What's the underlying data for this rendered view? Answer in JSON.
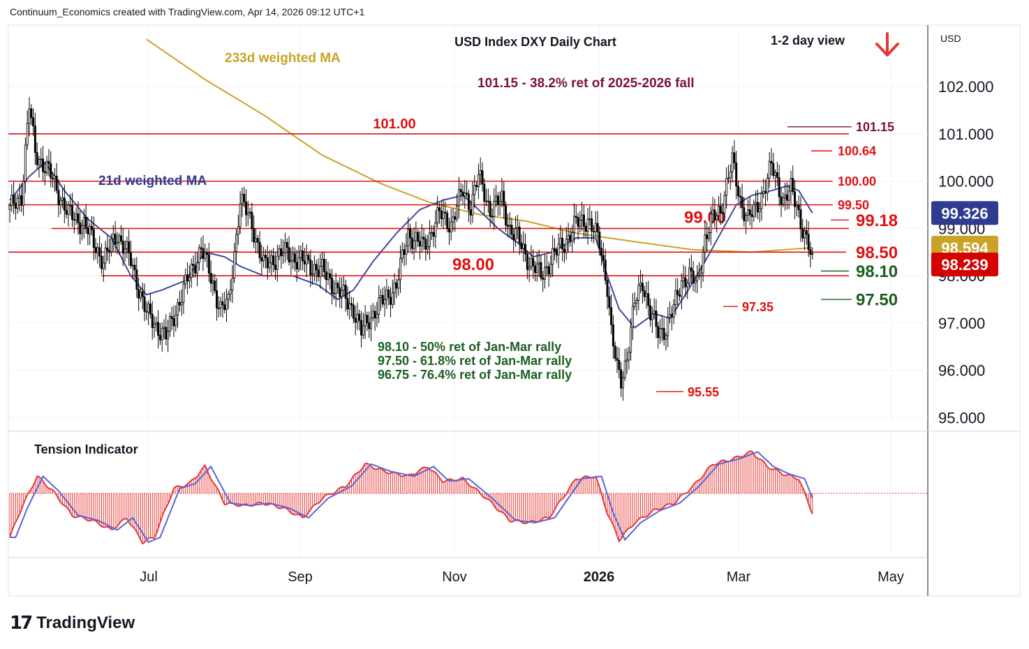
{
  "header": {
    "attribution": "Continuum_Economics created with TradingView.com, Apr 14, 2026 09:12 UTC+1"
  },
  "footer": {
    "logo_mark": "17",
    "logo_text": "TradingView"
  },
  "colors": {
    "level_red": "#e01010",
    "ma233": "#c9a227",
    "ma21": "#3a4a9c",
    "candle": "#000000",
    "fib_green": "#1b5e20",
    "fib_purple": "#7b1040",
    "arrow_red": "#e53935",
    "badge_blue": "#2e3b8f",
    "badge_gold": "#c9a227",
    "badge_red": "#d50000",
    "tension_red": "#e53935",
    "tension_blue": "#5a63d8"
  },
  "chart_data": {
    "type": "candlestick",
    "title": "USD Index DXY Daily Chart",
    "view_label": "1-2 day view",
    "view_direction_icon": "arrow-down-icon",
    "currency_label": "USD",
    "ylim": [
      94.8,
      103.3
    ],
    "y_ticks": [
      "102.000",
      "101.000",
      "100.000",
      "99.000",
      "98.000",
      "97.000",
      "96.000",
      "95.000"
    ],
    "x_labels": [
      "Jul",
      "Sep",
      "Nov",
      "2026",
      "Mar",
      "May"
    ],
    "price_badges": [
      {
        "value": "99.326",
        "role": "21d weighted MA",
        "color": "#2e3b8f"
      },
      {
        "value": "98.594",
        "role": "233d weighted MA",
        "color": "#c9a227"
      },
      {
        "value": "98.239",
        "role": "last price",
        "color": "#d50000"
      }
    ],
    "indicator_labels": {
      "ma233": "233d weighted MA",
      "ma21": "21d weighted MA",
      "fib_top": "101.15 - 38.2% ret of 2025-2026 fall"
    },
    "horizontal_levels": [
      {
        "value": 101.0,
        "label": "101.00"
      },
      {
        "value": 100.0,
        "label": "100.00"
      },
      {
        "value": 99.5,
        "label": "99.50"
      },
      {
        "value": 99.0,
        "label": "99.00"
      },
      {
        "value": 98.5,
        "label": "98.50"
      },
      {
        "value": 98.0,
        "label": "98.00"
      }
    ],
    "right_labels": [
      {
        "value": 101.15,
        "label": "101.15",
        "color": "#7b1040"
      },
      {
        "value": 100.64,
        "label": "100.64",
        "color": "#e01010"
      },
      {
        "value": 100.0,
        "label": "100.00",
        "color": "#e01010"
      },
      {
        "value": 99.5,
        "label": "99.50",
        "color": "#e01010"
      },
      {
        "value": 99.18,
        "label": "99.18",
        "color": "#e01010"
      },
      {
        "value": 98.5,
        "label": "98.50",
        "color": "#e01010"
      },
      {
        "value": 98.1,
        "label": "98.10",
        "color": "#1b5e20"
      },
      {
        "value": 97.5,
        "label": "97.50",
        "color": "#1b5e20"
      }
    ],
    "point_labels": [
      {
        "value": 97.35,
        "label": "97.35"
      },
      {
        "value": 95.55,
        "label": "95.55"
      }
    ],
    "fib_notes": [
      "98.10 - 50% ret of Jan-Mar rally",
      "97.50 - 61.8% ret of Jan-Mar rally",
      "96.75 - 76.4% ret of Jan-Mar rally"
    ],
    "tension_indicator": {
      "title": "Tension Indicator"
    },
    "price_path_keypoints": [
      [
        0,
        99.4
      ],
      [
        6,
        99.7
      ],
      [
        10,
        101.6
      ],
      [
        13,
        100.6
      ],
      [
        20,
        100.2
      ],
      [
        30,
        99.3
      ],
      [
        38,
        99.1
      ],
      [
        48,
        98.3
      ],
      [
        55,
        98.9
      ],
      [
        62,
        98.3
      ],
      [
        70,
        97.2
      ],
      [
        80,
        96.7
      ],
      [
        88,
        97.6
      ],
      [
        98,
        98.6
      ],
      [
        108,
        97.3
      ],
      [
        112,
        97.4
      ],
      [
        118,
        99.6
      ],
      [
        124,
        99.1
      ],
      [
        130,
        98.2
      ],
      [
        140,
        98.5
      ],
      [
        150,
        98.3
      ],
      [
        160,
        98.1
      ],
      [
        170,
        97.6
      ],
      [
        176,
        97.3
      ],
      [
        180,
        96.8
      ],
      [
        184,
        97.1
      ],
      [
        192,
        97.5
      ],
      [
        198,
        97.8
      ],
      [
        204,
        98.9
      ],
      [
        212,
        98.6
      ],
      [
        220,
        99.3
      ],
      [
        226,
        99.1
      ],
      [
        232,
        99.8
      ],
      [
        236,
        99.5
      ],
      [
        240,
        100.1
      ],
      [
        246,
        99.4
      ],
      [
        252,
        99.6
      ],
      [
        256,
        99.0
      ],
      [
        260,
        98.8
      ],
      [
        266,
        98.3
      ],
      [
        272,
        98.0
      ],
      [
        278,
        98.4
      ],
      [
        284,
        98.7
      ],
      [
        290,
        99.1
      ],
      [
        296,
        99.2
      ],
      [
        302,
        98.7
      ],
      [
        306,
        97.8
      ],
      [
        308,
        96.8
      ],
      [
        311,
        96.0
      ],
      [
        313,
        95.8
      ],
      [
        316,
        96.3
      ],
      [
        320,
        97.4
      ],
      [
        324,
        97.9
      ],
      [
        328,
        97.2
      ],
      [
        332,
        96.8
      ],
      [
        336,
        96.9
      ],
      [
        340,
        97.3
      ],
      [
        344,
        97.9
      ],
      [
        348,
        98.0
      ],
      [
        352,
        97.8
      ],
      [
        356,
        98.8
      ],
      [
        360,
        99.2
      ],
      [
        364,
        99.4
      ],
      [
        368,
        100.1
      ],
      [
        370,
        100.4
      ],
      [
        374,
        99.6
      ],
      [
        378,
        99.2
      ],
      [
        382,
        99.4
      ],
      [
        386,
        99.8
      ],
      [
        390,
        100.3
      ],
      [
        392,
        100.1
      ],
      [
        396,
        99.6
      ],
      [
        400,
        99.8
      ],
      [
        403,
        99.5
      ],
      [
        406,
        99.0
      ],
      [
        409,
        98.6
      ],
      [
        411,
        98.24
      ]
    ],
    "ma233_keypoints": [
      [
        70,
        103.0
      ],
      [
        100,
        102.15
      ],
      [
        130,
        101.4
      ],
      [
        160,
        100.55
      ],
      [
        190,
        99.95
      ],
      [
        215,
        99.55
      ],
      [
        240,
        99.3
      ],
      [
        265,
        99.15
      ],
      [
        290,
        98.9
      ],
      [
        320,
        98.72
      ],
      [
        350,
        98.55
      ],
      [
        380,
        98.5
      ],
      [
        411,
        98.594
      ]
    ],
    "ma21_keypoints": [
      [
        0,
        99.6
      ],
      [
        10,
        100.1
      ],
      [
        18,
        100.4
      ],
      [
        28,
        99.8
      ],
      [
        40,
        99.2
      ],
      [
        52,
        98.8
      ],
      [
        62,
        98.0
      ],
      [
        70,
        97.6
      ],
      [
        78,
        97.7
      ],
      [
        90,
        97.9
      ],
      [
        100,
        98.5
      ],
      [
        110,
        98.4
      ],
      [
        118,
        98.2
      ],
      [
        130,
        98.0
      ],
      [
        145,
        98.0
      ],
      [
        158,
        97.8
      ],
      [
        168,
        97.5
      ],
      [
        176,
        97.7
      ],
      [
        186,
        98.3
      ],
      [
        198,
        98.9
      ],
      [
        210,
        99.4
      ],
      [
        222,
        99.6
      ],
      [
        232,
        99.7
      ],
      [
        240,
        99.4
      ],
      [
        250,
        99.0
      ],
      [
        260,
        98.7
      ],
      [
        268,
        98.4
      ],
      [
        278,
        98.5
      ],
      [
        290,
        98.8
      ],
      [
        300,
        98.8
      ],
      [
        306,
        98.0
      ],
      [
        312,
        97.3
      ],
      [
        320,
        96.9
      ],
      [
        330,
        97.2
      ],
      [
        338,
        97.1
      ],
      [
        346,
        97.6
      ],
      [
        356,
        98.3
      ],
      [
        364,
        98.9
      ],
      [
        372,
        99.5
      ],
      [
        380,
        99.7
      ],
      [
        390,
        99.8
      ],
      [
        398,
        99.9
      ],
      [
        404,
        99.8
      ],
      [
        411,
        99.326
      ]
    ],
    "tension_keypoints": [
      [
        0,
        -0.9
      ],
      [
        6,
        -0.3
      ],
      [
        14,
        0.35
      ],
      [
        22,
        0.05
      ],
      [
        32,
        -0.45
      ],
      [
        42,
        -0.55
      ],
      [
        52,
        -0.75
      ],
      [
        60,
        -0.5
      ],
      [
        68,
        -1.0
      ],
      [
        74,
        -0.9
      ],
      [
        84,
        0.1
      ],
      [
        92,
        0.2
      ],
      [
        100,
        0.55
      ],
      [
        110,
        -0.2
      ],
      [
        120,
        -0.25
      ],
      [
        130,
        -0.2
      ],
      [
        140,
        -0.3
      ],
      [
        150,
        -0.5
      ],
      [
        160,
        -0.1
      ],
      [
        172,
        0.15
      ],
      [
        182,
        0.6
      ],
      [
        192,
        0.45
      ],
      [
        204,
        0.35
      ],
      [
        214,
        0.55
      ],
      [
        222,
        0.25
      ],
      [
        232,
        0.3
      ],
      [
        244,
        -0.1
      ],
      [
        256,
        -0.55
      ],
      [
        266,
        -0.6
      ],
      [
        276,
        -0.5
      ],
      [
        290,
        0.3
      ],
      [
        300,
        0.35
      ],
      [
        306,
        -0.4
      ],
      [
        312,
        -0.95
      ],
      [
        320,
        -0.6
      ],
      [
        330,
        -0.35
      ],
      [
        340,
        -0.2
      ],
      [
        350,
        0.15
      ],
      [
        360,
        0.6
      ],
      [
        370,
        0.7
      ],
      [
        380,
        0.85
      ],
      [
        388,
        0.55
      ],
      [
        396,
        0.4
      ],
      [
        404,
        0.3
      ],
      [
        411,
        -0.4
      ]
    ]
  }
}
